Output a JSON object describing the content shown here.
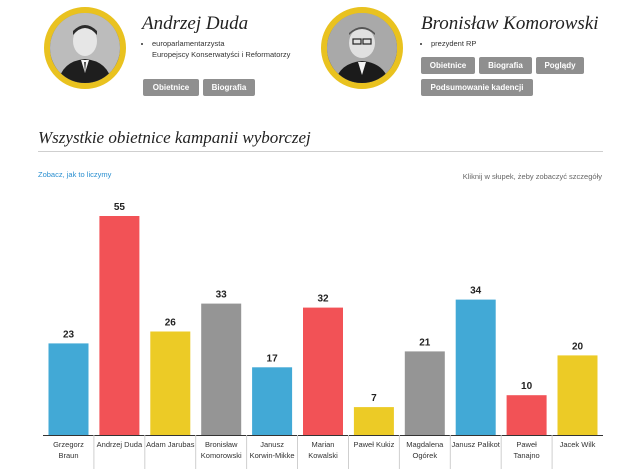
{
  "candidates": [
    {
      "name": "Andrzej Duda",
      "roles": [
        "europarlamentarzysta",
        "Europejscy Konserwatyści i Reformatorzy"
      ],
      "buttons": [
        "Obietnice",
        "Biografia"
      ]
    },
    {
      "name": "Bronisław Komorowski",
      "roles": [
        "prezydent RP"
      ],
      "buttons": [
        "Obietnice",
        "Biografia",
        "Poglądy",
        "Podsumowanie kadencji"
      ]
    }
  ],
  "section_title": "Wszystkie obietnice kampanii wyborczej",
  "method_link": "Zobacz, jak to liczymy",
  "hint": "Kliknij w słupek, żeby zobaczyć szczegóły",
  "colors": {
    "blue": "#42a9d6",
    "red": "#f25256",
    "yellow": "#eccb26",
    "gray": "#959595"
  },
  "chart_data": {
    "type": "bar",
    "categories": [
      [
        "Grzegorz",
        "Braun"
      ],
      [
        "Andrzej Duda"
      ],
      [
        "Adam Jarubas"
      ],
      [
        "Bronisław",
        "Komorowski"
      ],
      [
        "Janusz",
        "Korwin-Mikke"
      ],
      [
        "Marian",
        "Kowalski"
      ],
      [
        "Paweł Kukiz"
      ],
      [
        "Magdalena",
        "Ogórek"
      ],
      [
        "Janusz Palikot"
      ],
      [
        "Paweł",
        "Tanajno"
      ],
      [
        "Jacek Wilk"
      ]
    ],
    "values": [
      23,
      55,
      26,
      33,
      17,
      32,
      7,
      21,
      34,
      10,
      20
    ],
    "bar_colors": [
      "blue",
      "red",
      "yellow",
      "gray",
      "blue",
      "red",
      "yellow",
      "gray",
      "blue",
      "red",
      "yellow"
    ],
    "ylim": [
      0,
      55
    ]
  }
}
